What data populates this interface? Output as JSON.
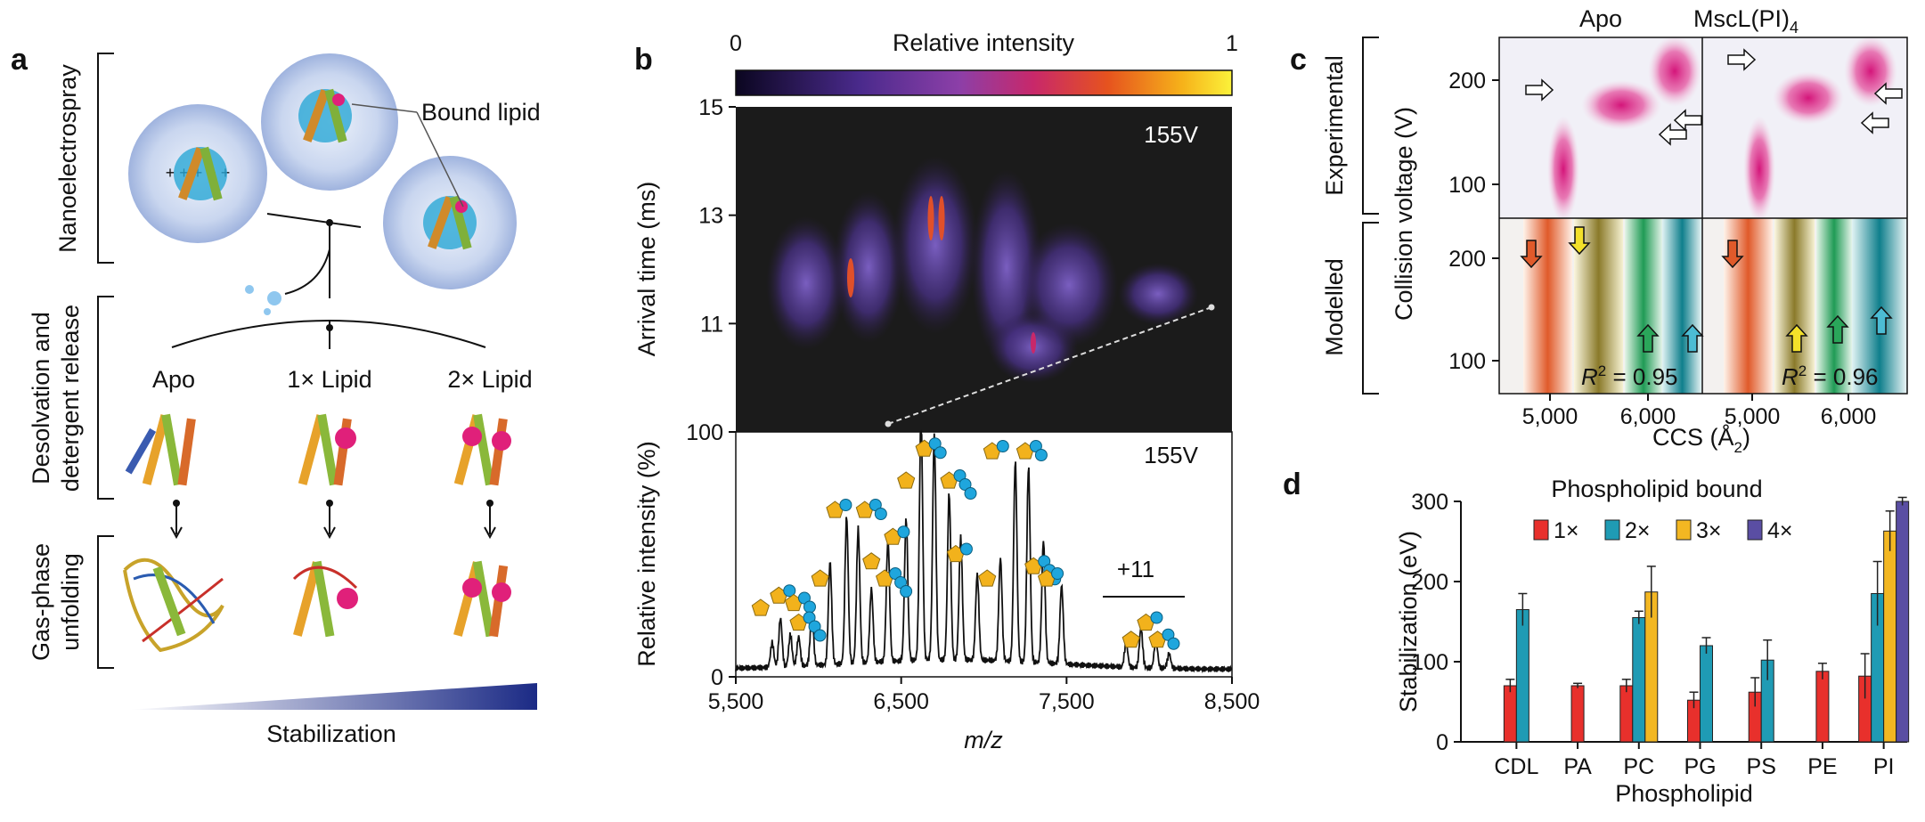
{
  "panel_a": {
    "label": "a",
    "stage1": "Nanoelectrospray",
    "stage2_line1": "Desolvation and",
    "stage2_line2": "detergent release",
    "stage3_line1": "Gas-phase",
    "stage3_line2": "unfolding",
    "bound_lipid": "Bound lipid",
    "col_apo": "Apo",
    "col_1x": "1× Lipid",
    "col_2x": "2× Lipid",
    "stabilization": "Stabilization"
  },
  "panel_b": {
    "label": "b",
    "colorbar_title": "Relative intensity",
    "colorbar_min": "0",
    "colorbar_max": "1",
    "voltage_top": "155V",
    "voltage_bottom": "155V",
    "charge_state": "+11",
    "xlabel": "m/z",
    "ylabel_top": "Arrival time (ms)",
    "ylabel_bottom": "Relative intensity (%)"
  },
  "panel_c": {
    "label": "c",
    "col_apo": "Apo",
    "col_mscl": "MscL(PI)",
    "col_mscl_sub": "4",
    "row_exp": "Experimental",
    "row_mod": "Modelled",
    "ylabel": "Collision voltage (V)",
    "xlabel": "CCS (Å",
    "xlabel_sub": "2",
    "xlabel_end": ")",
    "r2_apo": " = 0.95",
    "r2_mscl": " = 0.96",
    "r2_symbol": "R",
    "r2_sup": "2"
  },
  "panel_d": {
    "label": "d",
    "legend_title": "Phospholipid bound"
  },
  "chart_data": [
    {
      "type": "heatmap",
      "panel": "b-top",
      "title": "Relative intensity",
      "xlabel": "m/z",
      "ylabel": "Arrival time (ms)",
      "xlim": [
        5500,
        8500
      ],
      "ylim": [
        9,
        15
      ],
      "x_ticks": [
        "5,500",
        "6,500",
        "7,500",
        "8,500"
      ],
      "y_ticks": [
        "11",
        "13",
        "15"
      ],
      "colorbar_range": [
        0,
        1
      ]
    },
    {
      "type": "line",
      "panel": "b-bottom",
      "xlabel": "m/z",
      "ylabel": "Relative intensity (%)",
      "xlim": [
        5500,
        8500
      ],
      "ylim": [
        0,
        100
      ],
      "y_ticks": [
        "0",
        "100"
      ],
      "x_ticks": [
        "5,500",
        "6,500",
        "7,500",
        "8,500"
      ],
      "peaks": [
        {
          "x": 5720,
          "y": 10
        },
        {
          "x": 5770,
          "y": 20
        },
        {
          "x": 5830,
          "y": 13
        },
        {
          "x": 5880,
          "y": 12
        },
        {
          "x": 5960,
          "y": 22
        },
        {
          "x": 6070,
          "y": 42
        },
        {
          "x": 6170,
          "y": 60
        },
        {
          "x": 6240,
          "y": 55
        },
        {
          "x": 6320,
          "y": 30
        },
        {
          "x": 6420,
          "y": 50
        },
        {
          "x": 6530,
          "y": 58
        },
        {
          "x": 6620,
          "y": 100
        },
        {
          "x": 6700,
          "y": 92
        },
        {
          "x": 6790,
          "y": 68
        },
        {
          "x": 6860,
          "y": 50
        },
        {
          "x": 6960,
          "y": 35
        },
        {
          "x": 7100,
          "y": 42
        },
        {
          "x": 7190,
          "y": 82
        },
        {
          "x": 7270,
          "y": 80
        },
        {
          "x": 7360,
          "y": 50
        },
        {
          "x": 7470,
          "y": 32
        },
        {
          "x": 7860,
          "y": 10
        },
        {
          "x": 7950,
          "y": 16
        },
        {
          "x": 8040,
          "y": 12
        },
        {
          "x": 8120,
          "y": 6
        }
      ]
    },
    {
      "type": "heatmap",
      "panel": "c",
      "xlabel": "CCS (Å2)",
      "ylabel": "Collision voltage (V)",
      "columns": [
        "Apo",
        "MscL(PI)4"
      ],
      "rows": [
        "Experimental",
        "Modelled"
      ],
      "x_ticks": [
        "5,000",
        "6,000"
      ],
      "y_ticks": [
        "100",
        "200"
      ],
      "r_squared": [
        0.95,
        0.96
      ]
    },
    {
      "type": "bar",
      "panel": "d",
      "title": "Phospholipid bound",
      "xlabel": "Phospholipid",
      "ylabel": "Stabilization (eV)",
      "ylim": [
        0,
        300
      ],
      "y_ticks": [
        "0",
        "100",
        "200",
        "300"
      ],
      "categories": [
        "CDL",
        "PA",
        "PC",
        "PG",
        "PS",
        "PE",
        "PI"
      ],
      "series": [
        {
          "name": "1×",
          "color": "#e8302c",
          "values": [
            70,
            70,
            70,
            52,
            62,
            88,
            82
          ],
          "errors": [
            8,
            3,
            8,
            10,
            18,
            10,
            28
          ]
        },
        {
          "name": "2×",
          "color": "#1f9bb4",
          "values": [
            165,
            null,
            155,
            120,
            102,
            null,
            185
          ],
          "errors": [
            20,
            null,
            8,
            10,
            25,
            null,
            40
          ]
        },
        {
          "name": "3×",
          "color": "#f3b722",
          "values": [
            null,
            null,
            187,
            null,
            null,
            null,
            263
          ],
          "errors": [
            null,
            null,
            32,
            null,
            null,
            null,
            25
          ]
        },
        {
          "name": "4×",
          "color": "#5a4ea3",
          "values": [
            null,
            null,
            null,
            null,
            null,
            null,
            300
          ],
          "errors": [
            null,
            null,
            null,
            null,
            null,
            null,
            5
          ]
        }
      ]
    }
  ]
}
